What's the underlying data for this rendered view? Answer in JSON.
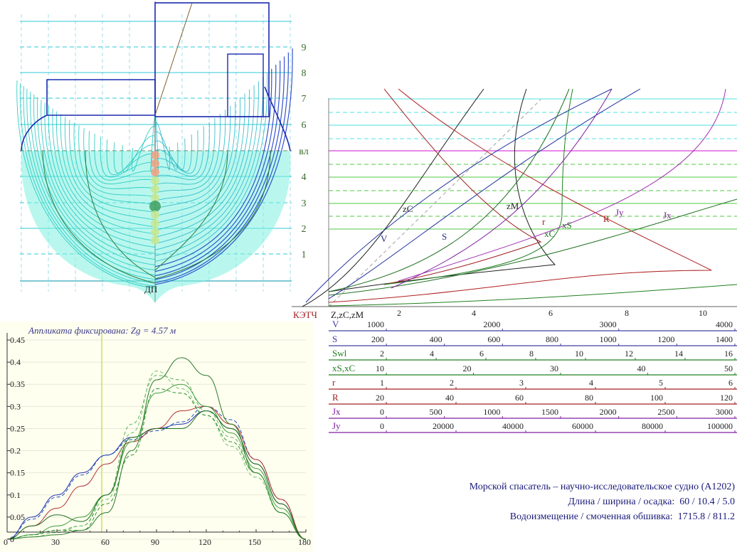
{
  "body_plan": {
    "waterline_labels": [
      "1",
      "2",
      "3",
      "4",
      "вл",
      "6",
      "7",
      "8",
      "9"
    ],
    "baseline_label": "ДП",
    "colors": {
      "hull_fill": "#7ff0e0",
      "frame_fore": "#2040c8",
      "frame_aft": "#20c8c0",
      "waterline": "#7a7a7a"
    }
  },
  "hydrostatics": {
    "base_label": "КЭТЧ",
    "axis_label": "Z,zC,zM",
    "axis_ticks": [
      "2",
      "4",
      "6",
      "8",
      "10"
    ],
    "curve_labels": [
      {
        "id": "zC",
        "text": "zC",
        "color": "#222222"
      },
      {
        "id": "V",
        "text": "V",
        "color": "#203080"
      },
      {
        "id": "S",
        "text": "S",
        "color": "#203080"
      },
      {
        "id": "zM",
        "text": "zM",
        "color": "#222222"
      },
      {
        "id": "r",
        "text": "r",
        "color": "#a02020"
      },
      {
        "id": "xC",
        "text": "xC",
        "color": "#207020"
      },
      {
        "id": "xS",
        "text": "xS",
        "color": "#207020"
      },
      {
        "id": "R",
        "text": "R",
        "color": "#a02020"
      },
      {
        "id": "Jy",
        "text": "Jy",
        "color": "#8020a0"
      },
      {
        "id": "Jx",
        "text": "Jx",
        "color": "#8020a0"
      }
    ],
    "scales": [
      {
        "name": "V",
        "color": "#4040a0",
        "ticks": [
          "1000",
          "2000",
          "3000",
          "4000"
        ]
      },
      {
        "name": "S",
        "color": "#4040a0",
        "ticks": [
          "200",
          "400",
          "600",
          "800",
          "1000",
          "1200",
          "1400"
        ]
      },
      {
        "name": "Swl",
        "color": "#208020",
        "ticks": [
          "2",
          "4",
          "6",
          "8",
          "10",
          "12",
          "14",
          "16"
        ]
      },
      {
        "name": "xS,xC",
        "color": "#208020",
        "ticks": [
          "10",
          "20",
          "30",
          "40",
          "50"
        ]
      },
      {
        "name": "r",
        "color": "#a02020",
        "ticks": [
          "1",
          "2",
          "3",
          "4",
          "5",
          "6"
        ]
      },
      {
        "name": "R",
        "color": "#a02020",
        "ticks": [
          "20",
          "40",
          "60",
          "80",
          "100",
          "120"
        ]
      },
      {
        "name": "Jx",
        "color": "#8020a0",
        "ticks": [
          "0",
          "500",
          "1000",
          "1500",
          "2000",
          "2500",
          "3000"
        ]
      },
      {
        "name": "Jy",
        "color": "#8020a0",
        "ticks": [
          "0",
          "20000",
          "40000",
          "60000",
          "80000",
          "100000"
        ]
      }
    ]
  },
  "stability_chart": {
    "title": "Аппликата фиксирована: Zg = 4.57 м",
    "y_ticks": [
      "0",
      "0.05",
      "0.1",
      "0.15",
      "0.2",
      "0.25",
      "0.3",
      "0.35",
      "0.4",
      "0.45"
    ],
    "x_ticks": [
      "0",
      "30",
      "60",
      "90",
      "120",
      "150",
      "180"
    ],
    "marker_angle": 57
  },
  "chart_data": {
    "type": "line",
    "title": "Аппликата фиксирована: Zg = 4.57 м",
    "xlabel": "",
    "ylabel": "",
    "xlim": [
      0,
      180
    ],
    "ylim": [
      0,
      0.45
    ],
    "x": [
      0,
      15,
      30,
      45,
      60,
      75,
      90,
      105,
      120,
      135,
      150,
      165,
      180
    ],
    "series": [
      {
        "values": [
          0,
          0.05,
          0.1,
          0.15,
          0.19,
          0.23,
          0.25,
          0.26,
          0.29,
          0.25,
          0.17,
          0.08,
          0
        ]
      },
      {
        "values": [
          0,
          0.045,
          0.095,
          0.145,
          0.19,
          0.225,
          0.245,
          0.265,
          0.3,
          0.27,
          0.18,
          0.09,
          0
        ]
      },
      {
        "values": [
          0,
          0.03,
          0.07,
          0.12,
          0.17,
          0.22,
          0.25,
          0.29,
          0.3,
          0.26,
          0.18,
          0.09,
          0
        ]
      },
      {
        "values": [
          0,
          0.01,
          0.03,
          0.05,
          0.1,
          0.22,
          0.33,
          0.35,
          0.3,
          0.24,
          0.16,
          0.07,
          0
        ]
      },
      {
        "values": [
          0,
          0.01,
          0.02,
          0.03,
          0.1,
          0.26,
          0.37,
          0.36,
          0.29,
          0.23,
          0.15,
          0.06,
          0
        ]
      },
      {
        "values": [
          0,
          0.005,
          0.015,
          0.03,
          0.09,
          0.24,
          0.38,
          0.34,
          0.28,
          0.21,
          0.14,
          0.06,
          0
        ]
      },
      {
        "values": [
          0,
          0.005,
          0.01,
          0.02,
          0.06,
          0.2,
          0.36,
          0.41,
          0.37,
          0.26,
          0.15,
          0.06,
          0
        ]
      },
      {
        "values": [
          0,
          0.03,
          0.055,
          0.04,
          0.1,
          0.23,
          0.25,
          0.25,
          0.29,
          0.25,
          0.17,
          0.08,
          0
        ]
      },
      {
        "values": [
          0,
          0.01,
          0.02,
          0.02,
          0.08,
          0.19,
          0.34,
          0.33,
          0.28,
          0.22,
          0.15,
          0.06,
          0
        ]
      }
    ]
  },
  "caption": {
    "line1": "Морской спасатель – научно-исследовательское судно (А1202)",
    "line2_label": "Длина / ширина / осадка:",
    "line2_value": "60 / 10.4 / 5.0",
    "line3_label": "Водоизмещение / смоченная обшивка:",
    "line3_value": "1715.8 / 811.2"
  }
}
